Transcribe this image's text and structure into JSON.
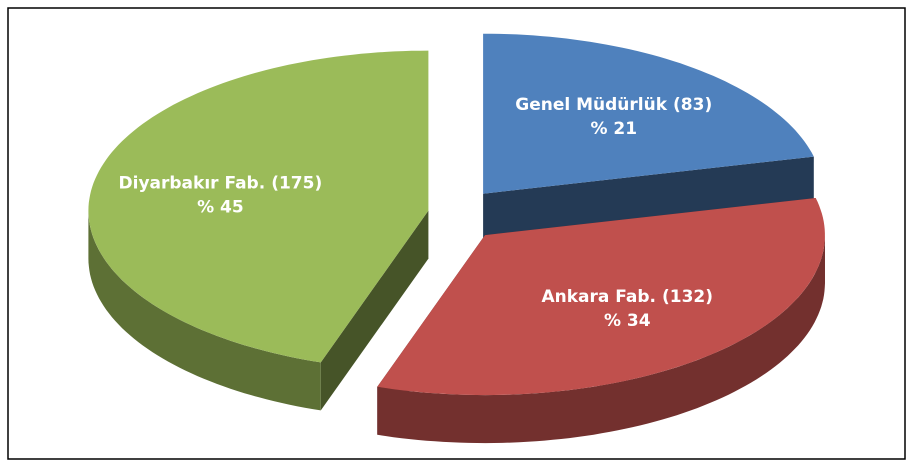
{
  "chart_data": {
    "type": "pie",
    "categories": [
      "Genel Müdürlük",
      "Ankara Fab.",
      "Diyarbakır Fab."
    ],
    "values": [
      83,
      132,
      175
    ],
    "value_labels": [
      "(83)",
      "(132)",
      "(175)"
    ],
    "percents": [
      21,
      34,
      45
    ],
    "percent_labels": [
      "% 21",
      "% 34",
      "% 45"
    ],
    "colors": [
      "#4f81bd",
      "#c0504d",
      "#9bbb59"
    ]
  }
}
